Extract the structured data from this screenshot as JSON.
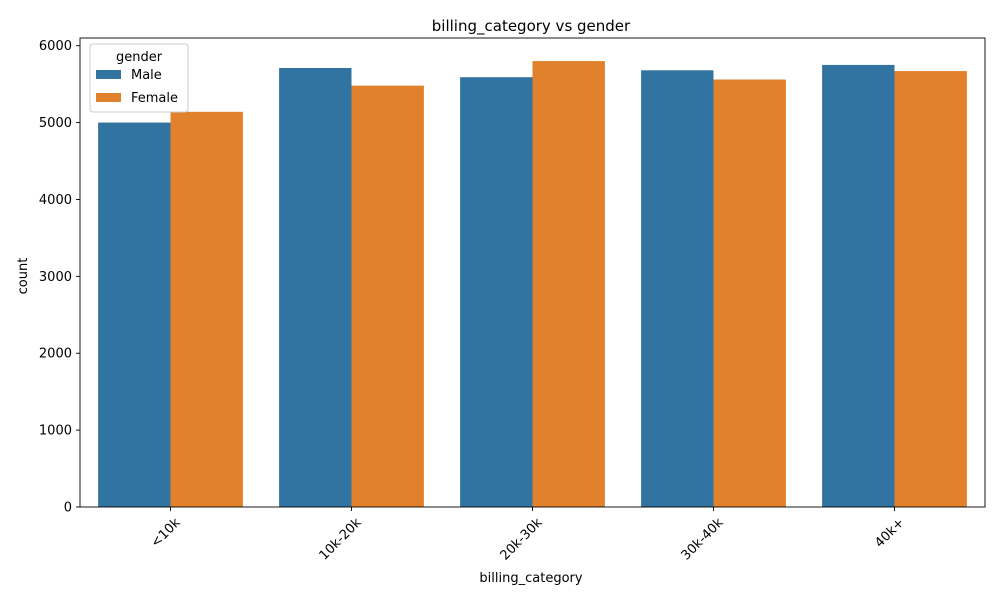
{
  "chart_data": {
    "type": "bar",
    "title": "billing_category vs gender",
    "xlabel": "billing_category",
    "ylabel": "count",
    "categories": [
      "<10k",
      "10k-20k",
      "20k-30k",
      "30k-40k",
      "40k+"
    ],
    "series": [
      {
        "name": "Male",
        "color": "#3274a1",
        "values": [
          5000,
          5710,
          5590,
          5680,
          5750
        ]
      },
      {
        "name": "Female",
        "color": "#e1812c",
        "values": [
          5140,
          5480,
          5800,
          5560,
          5670
        ]
      }
    ],
    "ylim": [
      0,
      6100
    ],
    "yticks": [
      0,
      1000,
      2000,
      3000,
      4000,
      5000,
      6000
    ],
    "ytick_labels": [
      "0",
      "1000",
      "2000",
      "3000",
      "4000",
      "5000",
      "6000"
    ],
    "xtick_rotation_deg": 45,
    "grid": false,
    "legend": {
      "title": "gender",
      "position": "top-left",
      "entries": [
        "Male",
        "Female"
      ]
    }
  }
}
